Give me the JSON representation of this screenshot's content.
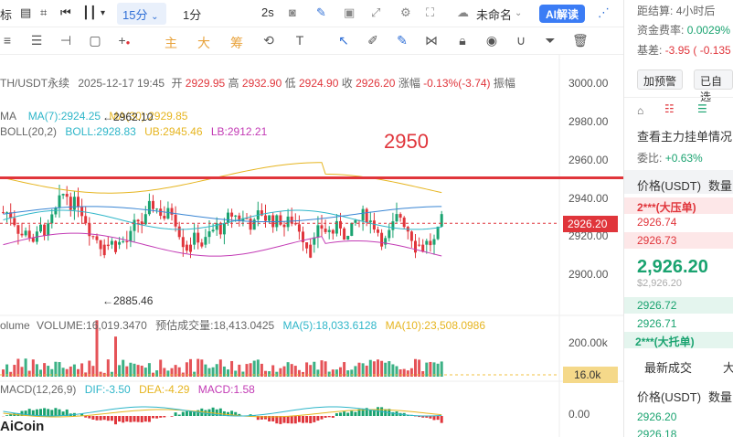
{
  "toolbar": {
    "left_text": "标",
    "timeframe": "15分",
    "interval_1m": "1分",
    "interval_2s": "2s",
    "layout_name": "未命名",
    "ai_button": "AI解读"
  },
  "drawbar": {
    "label_zhu": "主",
    "label_da": "大",
    "label_chou": "筹"
  },
  "chart": {
    "header": {
      "symbol": "TH/USDT永续",
      "datetime": "2025-12-17 19:45",
      "open_label": "开",
      "open": "2929.95",
      "high_label": "高",
      "high": "2932.90",
      "low_label": "低",
      "low": "2924.90",
      "close_label": "收",
      "close": "2926.20",
      "change_label": "涨幅",
      "change": "-0.13%(-3.74)",
      "amp_label": "振幅"
    },
    "ma_line": {
      "label": "MA",
      "ma7": "MA(7):2924.25",
      "ma30": "MA(30):2929.85"
    },
    "boll_line": {
      "label": "BOLL(20,2)",
      "boll": "BOLL:2928.83",
      "ub": "UB:2945.46",
      "lb": "LB:2912.21"
    },
    "annotation_price": "2950",
    "high_marker": "2962.10",
    "low_marker": "2885.46",
    "price_ticks": [
      "3000.00",
      "2980.00",
      "2960.00",
      "2940.00",
      "2920.00",
      "2900.00"
    ],
    "current_price_tag": "2926.20",
    "volume_line": {
      "label": "olume",
      "volume": "VOLUME:16,019.3470",
      "forecast": "预估成交量:18,413.0425",
      "ma5": "MA(5):18,033.6128",
      "ma10": "MA(10):23,508.0986"
    },
    "volume_ticks": [
      "200.00k"
    ],
    "volume_tag": "16.0k",
    "macd_line": {
      "label": "MACD(12,26,9)",
      "dif": "DIF:-3.50",
      "dea": "DEA:-4.29",
      "macd": "MACD:1.58"
    },
    "macd_ticks": [
      "0.00"
    ],
    "logo": "AiCoin",
    "colors": {
      "up": "#1aa370",
      "down": "#e0353b",
      "accent": "#2f6fd6",
      "annotation": "#e0353b",
      "ma7": "#2fb6c9",
      "ma30": "#e6b520",
      "boll_lb": "#c33bb5"
    }
  },
  "panel": {
    "settle_label": "距结算:",
    "settle_value": "4小时后",
    "funding_label": "资金费率:",
    "funding_value": "0.0029%",
    "basis_label": "基差:",
    "basis_value": "-3.95 ( -0.135",
    "btn_alert": "加预警",
    "btn_watch": "已自选",
    "orderbook_link": "查看主力挂单情况",
    "ratio_label": "委比:",
    "ratio_value": "+0.63%",
    "col_price": "价格(USDT)",
    "col_qty": "数量",
    "big_ask_label": "2***(大压单)",
    "asks": [
      "2926.74",
      "2926.73"
    ],
    "last_price": "2,926.20",
    "last_price_usd": "$2,926.20",
    "bids": [
      "2926.72",
      "2926.71"
    ],
    "big_bid_label": "2***(大托单)",
    "trades_tab": "最新成交",
    "trades_tab2": "大",
    "trades_col_price": "价格(USDT)",
    "trades_col_qty": "数量",
    "trades": [
      "2926.20",
      "2926.18"
    ]
  }
}
